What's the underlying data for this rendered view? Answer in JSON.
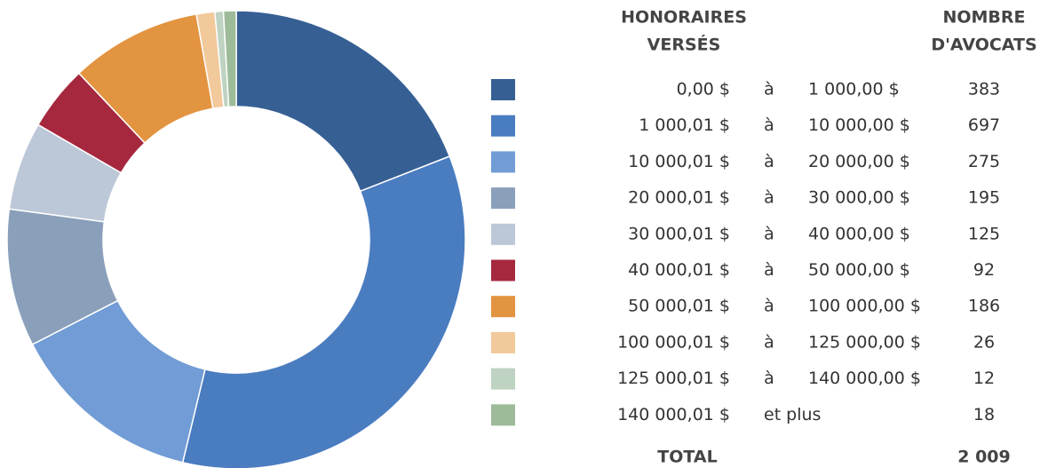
{
  "chart_data": {
    "type": "donut",
    "header_range": [
      "HONORAIRES",
      "VERSÉS"
    ],
    "header_count": [
      "NOMBRE",
      "D'AVOCATS"
    ],
    "rows": [
      {
        "from": "0,00 $",
        "sep": "à",
        "to": "1 000,00 $"
      },
      {
        "from": "1 000,01 $",
        "sep": "à",
        "to": "10 000,00 $"
      },
      {
        "from": "10 000,01 $",
        "sep": "à",
        "to": "20 000,00 $"
      },
      {
        "from": "20 000,01 $",
        "sep": "à",
        "to": "30 000,00 $"
      },
      {
        "from": "30 000,01 $",
        "sep": "à",
        "to": "40 000,00 $"
      },
      {
        "from": "40 000,01 $",
        "sep": "à",
        "to": "50 000,00 $"
      },
      {
        "from": "50 000,01 $",
        "sep": "à",
        "to": "100 000,00 $"
      },
      {
        "from": "100 000,01 $",
        "sep": "à",
        "to": "125 000,00 $"
      },
      {
        "from": "125 000,01 $",
        "sep": "à",
        "to": "140 000,00 $"
      },
      {
        "from": "140 000,01 $",
        "sep": "et plus"
      }
    ],
    "values": [
      383,
      697,
      275,
      195,
      125,
      92,
      186,
      26,
      12,
      18
    ],
    "colors": [
      "#365f94",
      "#4a7cc0",
      "#719cd5",
      "#8a9fba",
      "#bcc7d7",
      "#a5283f",
      "#e39440",
      "#f2c99b",
      "#bed3c1",
      "#9dbb98"
    ],
    "total_label": "TOTAL",
    "total": {
      "value": 2009,
      "label": "2 009"
    }
  }
}
